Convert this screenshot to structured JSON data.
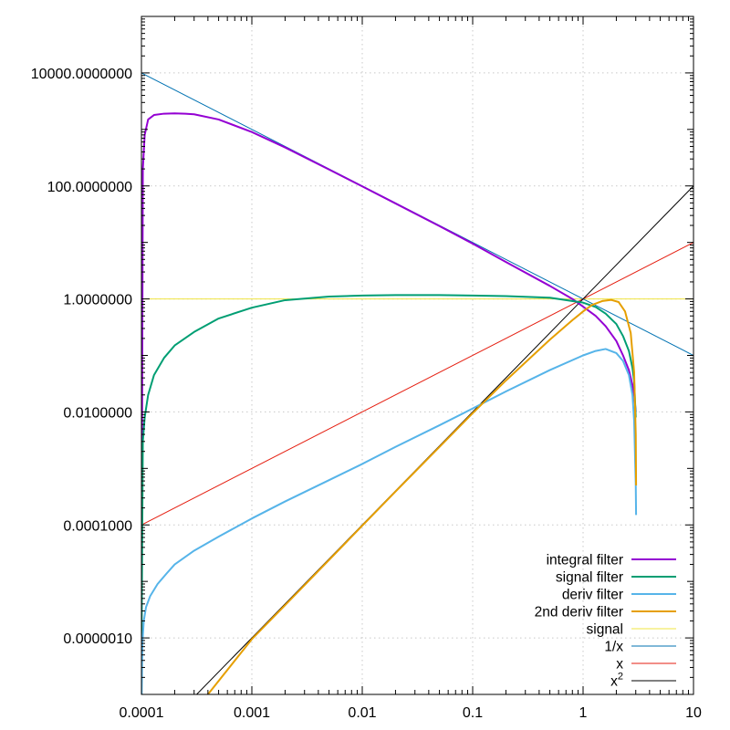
{
  "chart_data": {
    "type": "line",
    "title": "",
    "xlabel": "",
    "ylabel": "",
    "x_scale": "log",
    "y_scale": "log",
    "xlim": [
      0.0001,
      10
    ],
    "ylim": [
      1e-07,
      100000
    ],
    "grid": true,
    "legend_position": "bottom-right",
    "x_ticks": [
      {
        "value": 0.0001,
        "label": "0.0001"
      },
      {
        "value": 0.001,
        "label": "0.001"
      },
      {
        "value": 0.01,
        "label": "0.01"
      },
      {
        "value": 0.1,
        "label": "0.1"
      },
      {
        "value": 1,
        "label": "1"
      },
      {
        "value": 10,
        "label": "10"
      }
    ],
    "y_ticks": [
      {
        "value": 1e-06,
        "label": "0.0000010"
      },
      {
        "value": 0.0001,
        "label": "0.0001000"
      },
      {
        "value": 0.01,
        "label": "0.0100000"
      },
      {
        "value": 1,
        "label": "1.0000000"
      },
      {
        "value": 100,
        "label": "100.0000000"
      },
      {
        "value": 10000,
        "label": "10000.0000000"
      }
    ],
    "series": [
      {
        "name": "integral filter",
        "color": "#9400d3",
        "width": 2,
        "x": [
          0.0001,
          0.000103,
          0.000107,
          0.000115,
          0.00013,
          0.00016,
          0.0002,
          0.00025,
          0.0003,
          0.0005,
          0.001,
          0.002,
          0.005,
          0.01,
          0.02,
          0.05,
          0.1,
          0.2,
          0.5,
          0.8,
          1,
          1.3,
          1.6,
          2,
          2.3,
          2.6,
          2.8,
          2.9,
          3.0
        ],
        "y": [
          1e-06,
          200,
          800,
          1500,
          1800,
          1900,
          1920,
          1900,
          1850,
          1500,
          900,
          480,
          195,
          98,
          49,
          19.5,
          9.5,
          4.5,
          1.7,
          1.0,
          0.73,
          0.5,
          0.33,
          0.18,
          0.1,
          0.055,
          0.03,
          0.02,
          0.01
        ]
      },
      {
        "name": "signal filter",
        "color": "#009e73",
        "width": 2,
        "x": [
          0.0001,
          0.000103,
          0.000107,
          0.000115,
          0.00013,
          0.00016,
          0.0002,
          0.0003,
          0.0005,
          0.001,
          0.002,
          0.005,
          0.01,
          0.02,
          0.05,
          0.1,
          0.2,
          0.5,
          1,
          1.3,
          1.6,
          2,
          2.3,
          2.6,
          2.8,
          2.9,
          3.0
        ],
        "y": [
          5e-07,
          0.003,
          0.008,
          0.02,
          0.045,
          0.09,
          0.15,
          0.26,
          0.45,
          0.7,
          0.95,
          1.1,
          1.15,
          1.17,
          1.17,
          1.15,
          1.12,
          1.05,
          0.86,
          0.72,
          0.55,
          0.36,
          0.22,
          0.12,
          0.06,
          0.035,
          0.008
        ]
      },
      {
        "name": "deriv filter",
        "color": "#56b4e9",
        "width": 2,
        "x": [
          0.0001,
          0.000102,
          0.000105,
          0.00011,
          0.00012,
          0.00014,
          0.00017,
          0.0002,
          0.0003,
          0.0005,
          0.001,
          0.002,
          0.005,
          0.01,
          0.02,
          0.05,
          0.1,
          0.2,
          0.5,
          1,
          1.3,
          1.6,
          2,
          2.3,
          2.6,
          2.8,
          2.9,
          3.0,
          3.02
        ],
        "y": [
          5e-08,
          8e-07,
          2e-06,
          3.5e-06,
          5.5e-06,
          9e-06,
          1.4e-05,
          2e-05,
          3.5e-05,
          6.2e-05,
          0.00013,
          0.00026,
          0.00062,
          0.0012,
          0.0024,
          0.0058,
          0.0115,
          0.023,
          0.055,
          0.1,
          0.12,
          0.13,
          0.11,
          0.08,
          0.045,
          0.02,
          0.007,
          0.0005,
          0.00015
        ]
      },
      {
        "name": "2nd deriv filter",
        "color": "#e69f00",
        "width": 2,
        "x": [
          0.0004,
          0.001,
          0.002,
          0.005,
          0.01,
          0.02,
          0.05,
          0.1,
          0.2,
          0.5,
          0.8,
          1,
          1.2,
          1.5,
          1.8,
          2.1,
          2.4,
          2.7,
          2.9,
          3.0,
          3.02
        ],
        "y": [
          1e-07,
          9.5e-07,
          3.8e-06,
          2.4e-05,
          9.7e-05,
          0.00039,
          0.0024,
          0.0095,
          0.036,
          0.19,
          0.42,
          0.6,
          0.78,
          0.92,
          0.96,
          0.88,
          0.6,
          0.25,
          0.05,
          0.004,
          0.0005
        ]
      },
      {
        "name": "signal",
        "color": "#f0e442",
        "width": 1,
        "x": [
          0.0001,
          10
        ],
        "y": [
          1,
          1
        ]
      },
      {
        "name": "1/x",
        "color": "#0072b2",
        "width": 1,
        "x": [
          0.0001,
          10
        ],
        "y": [
          10000,
          0.1
        ]
      },
      {
        "name": "x",
        "color": "#e51e10",
        "width": 1,
        "x": [
          0.0001,
          10
        ],
        "y": [
          0.0001,
          10
        ]
      },
      {
        "name": "x2",
        "color": "#000000",
        "width": 1,
        "x": [
          0.0001,
          10
        ],
        "y": [
          1e-08,
          100
        ]
      }
    ]
  },
  "legend": {
    "items": [
      {
        "label": "integral filter",
        "color": "#9400d3",
        "width": 2
      },
      {
        "label": "signal filter",
        "color": "#009e73",
        "width": 2
      },
      {
        "label": "deriv filter",
        "color": "#56b4e9",
        "width": 2
      },
      {
        "label": "2nd deriv filter",
        "color": "#e69f00",
        "width": 2
      },
      {
        "label": "signal",
        "color": "#f0e442",
        "width": 1
      },
      {
        "label": "1/x",
        "color": "#0072b2",
        "width": 1
      },
      {
        "label": "x",
        "color": "#e51e10",
        "width": 1
      },
      {
        "label": "x",
        "superscript": "2",
        "color": "#000000",
        "width": 1
      }
    ]
  }
}
